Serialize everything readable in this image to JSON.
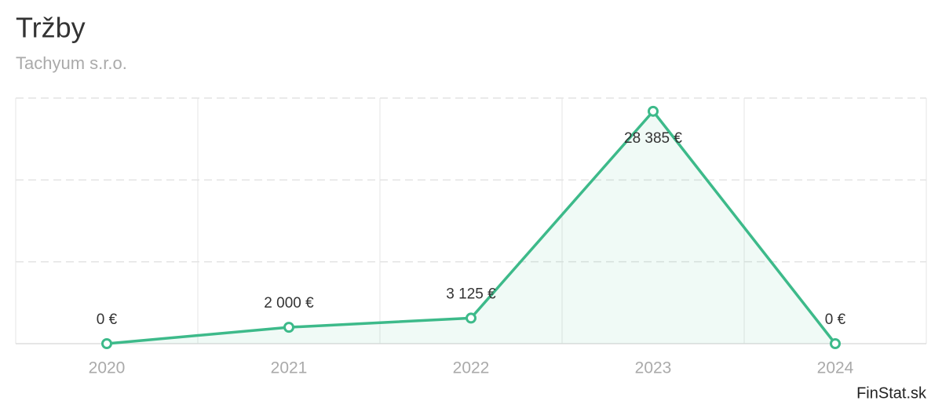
{
  "chart_data": {
    "type": "line",
    "title": "Tržby",
    "subtitle": "Tachyum s.r.o.",
    "categories": [
      "2020",
      "2021",
      "2022",
      "2023",
      "2024"
    ],
    "values": [
      0,
      2000,
      3125,
      28385,
      0
    ],
    "value_labels": [
      "0 €",
      "2 000 €",
      "3 125 €",
      "28 385 €",
      "0 €"
    ],
    "color": "#3dba8a",
    "ylim": [
      0,
      30000
    ],
    "yticks": [
      0,
      10000,
      20000,
      30000
    ],
    "grid": true,
    "source": "FinStat.sk"
  }
}
